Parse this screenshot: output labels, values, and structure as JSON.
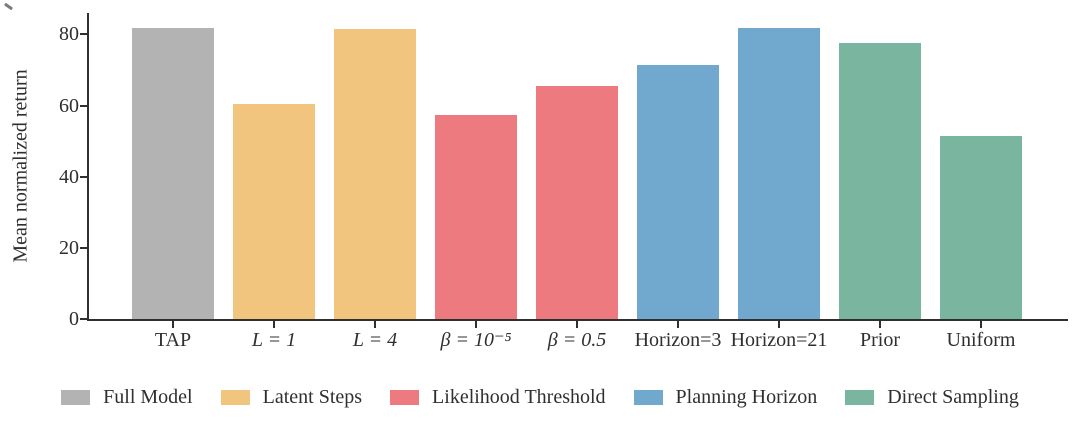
{
  "chart_data": {
    "type": "bar",
    "title": "",
    "xlabel": "",
    "ylabel": "Mean normalized return",
    "ylim": [
      0,
      86
    ],
    "yticks": [
      0,
      20,
      40,
      60,
      80
    ],
    "grid": false,
    "legend_position": "bottom-center",
    "categories": [
      "TAP",
      "L = 1",
      "L = 4",
      "β = 10⁻⁵",
      "β = 0.5",
      "Horizon=3",
      "Horizon=21",
      "Prior",
      "Uniform"
    ],
    "values": [
      81.8,
      60.3,
      81.5,
      57.2,
      65.4,
      71.5,
      81.8,
      77.7,
      51.3
    ],
    "bar_colors": [
      "#b3b3b3",
      "#f2c57f",
      "#f2c57f",
      "#ec7a7e",
      "#ec7a7e",
      "#70a9cd",
      "#70a9cd",
      "#7ab5a0",
      "#7ab5a0"
    ],
    "math_labels": [
      false,
      true,
      true,
      true,
      true,
      false,
      false,
      false,
      false
    ],
    "legend": [
      {
        "label": "Full Model",
        "color": "#b3b3b3"
      },
      {
        "label": "Latent Steps",
        "color": "#f2c57f"
      },
      {
        "label": "Likelihood Threshold",
        "color": "#ec7a7e"
      },
      {
        "label": "Planning Horizon",
        "color": "#70a9cd"
      },
      {
        "label": "Direct Sampling",
        "color": "#7ab5a0"
      }
    ]
  },
  "style": {
    "axis_color": "#2f2f2f",
    "text_color": "#2f2f2f",
    "background": "#ffffff"
  }
}
